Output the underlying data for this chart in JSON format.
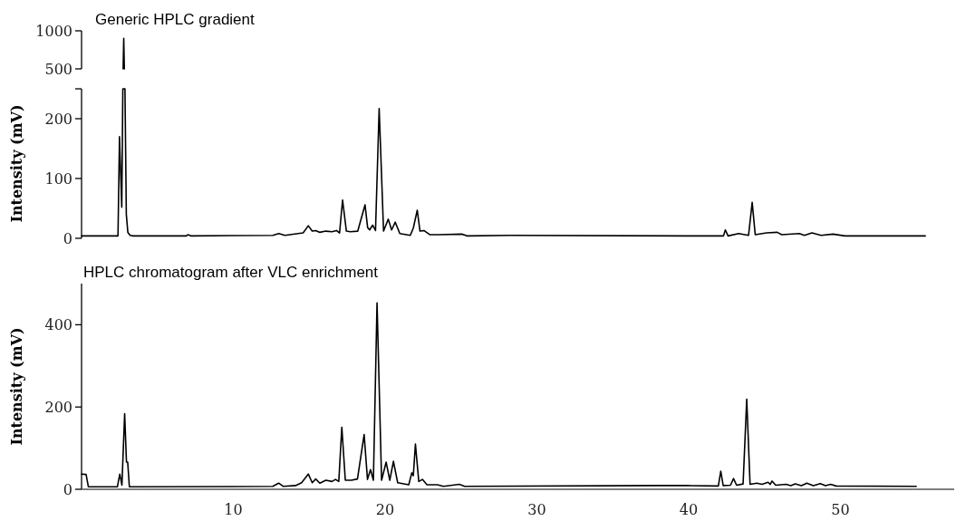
{
  "chart_data": [
    {
      "type": "line",
      "title": "Generic HPLC gradient",
      "xlim": [
        0,
        57.5
      ],
      "ylim": [
        500,
        1000
      ],
      "yticks": [
        500,
        1000
      ],
      "tick_labels": "y",
      "series": [
        {
          "color": "#000000",
          "x": [
            2.74,
            2.78,
            2.82
          ],
          "values": [
            500,
            900,
            500
          ]
        }
      ]
    },
    {
      "type": "line",
      "ylabel": "Intensity (mV)",
      "xlim": [
        0,
        57.5
      ],
      "ylim": [
        0,
        250
      ],
      "yticks": [
        0,
        100,
        200,
        {
          "value": 250,
          "label": null
        }
      ],
      "tick_labels": "y",
      "series": [
        {
          "color": "#000000",
          "x": [
            0,
            2.4,
            2.5,
            2.65,
            2.72,
            2.86,
            2.95,
            3.05,
            3.2,
            3.4,
            6.9,
            7.0,
            7.2,
            12.6,
            13.0,
            13.4,
            14.6,
            14.94,
            15.2,
            15.43,
            15.7,
            16.1,
            16.5,
            16.8,
            17.0,
            17.2,
            17.45,
            17.7,
            18.2,
            18.68,
            18.85,
            18.98,
            19.18,
            19.37,
            19.61,
            19.9,
            20.21,
            20.43,
            20.67,
            20.97,
            21.66,
            21.86,
            22.12,
            22.3,
            22.56,
            22.96,
            23.56,
            25.05,
            25.4,
            28.2,
            39.96,
            42.3,
            42.42,
            42.6,
            43.3,
            43.95,
            44.19,
            44.39,
            45.14,
            45.84,
            46.14,
            47.3,
            47.63,
            48.13,
            48.73,
            49.52,
            50.3,
            55.6
          ],
          "values": [
            4,
            4,
            170,
            52,
            250,
            250,
            40,
            10,
            5,
            4,
            4,
            6,
            4,
            5,
            8,
            5,
            9,
            21,
            12,
            13,
            10,
            12,
            11,
            13,
            9,
            64,
            12,
            11,
            12,
            56,
            18,
            14,
            22,
            13,
            217,
            12,
            32,
            14,
            27,
            8,
            5,
            17,
            47,
            12,
            13,
            6,
            6,
            7,
            4,
            5,
            4,
            4,
            14,
            4,
            8,
            5,
            60,
            6,
            9,
            10,
            6,
            8,
            5,
            9,
            5,
            7,
            4,
            4
          ]
        }
      ]
    },
    {
      "type": "line",
      "title": "HPLC chromatogram after VLC enrichment",
      "ylabel": "Intensity (mV)",
      "xlim": [
        0,
        57.5
      ],
      "xticks": [
        10,
        20,
        30,
        40,
        50
      ],
      "ylim": [
        0,
        500
      ],
      "yticks": [
        0,
        200,
        400
      ],
      "series": [
        {
          "color": "#000000",
          "x": [
            0,
            0.3,
            0.45,
            2.36,
            2.52,
            2.66,
            2.84,
            2.96,
            3.04,
            3.15,
            12.6,
            12.99,
            13.3,
            14.1,
            14.5,
            14.94,
            15.2,
            15.43,
            15.7,
            16.1,
            16.5,
            16.73,
            16.95,
            17.15,
            17.38,
            17.78,
            18.18,
            18.62,
            18.84,
            19.04,
            19.23,
            19.47,
            19.77,
            20.07,
            20.31,
            20.55,
            20.83,
            21.56,
            21.76,
            21.86,
            22.0,
            22.22,
            22.46,
            22.76,
            23.45,
            23.85,
            24.9,
            25.24,
            37.9,
            39.87,
            41.96,
            42.12,
            42.28,
            42.76,
            42.96,
            43.16,
            43.59,
            43.83,
            44.05,
            44.5,
            44.84,
            45.24,
            45.38,
            45.5,
            45.74,
            46.43,
            46.73,
            47.03,
            47.43,
            47.79,
            48.22,
            48.68,
            49.02,
            49.36,
            49.72,
            55.0
          ],
          "values": [
            37,
            36,
            6,
            6,
            37,
            10,
            184,
            66,
            66,
            6,
            7,
            15,
            7,
            9,
            16,
            37,
            16,
            25,
            15,
            22,
            19,
            24,
            19,
            151,
            22,
            22,
            25,
            133,
            24,
            48,
            22,
            453,
            22,
            66,
            22,
            68,
            16,
            11,
            40,
            33,
            110,
            19,
            24,
            11,
            11,
            7,
            12,
            7,
            9,
            9,
            8,
            44,
            9,
            10,
            26,
            10,
            13,
            219,
            12,
            15,
            12,
            17,
            12,
            20,
            10,
            12,
            9,
            13,
            9,
            15,
            9,
            14,
            9,
            12,
            8,
            7
          ]
        }
      ]
    }
  ]
}
